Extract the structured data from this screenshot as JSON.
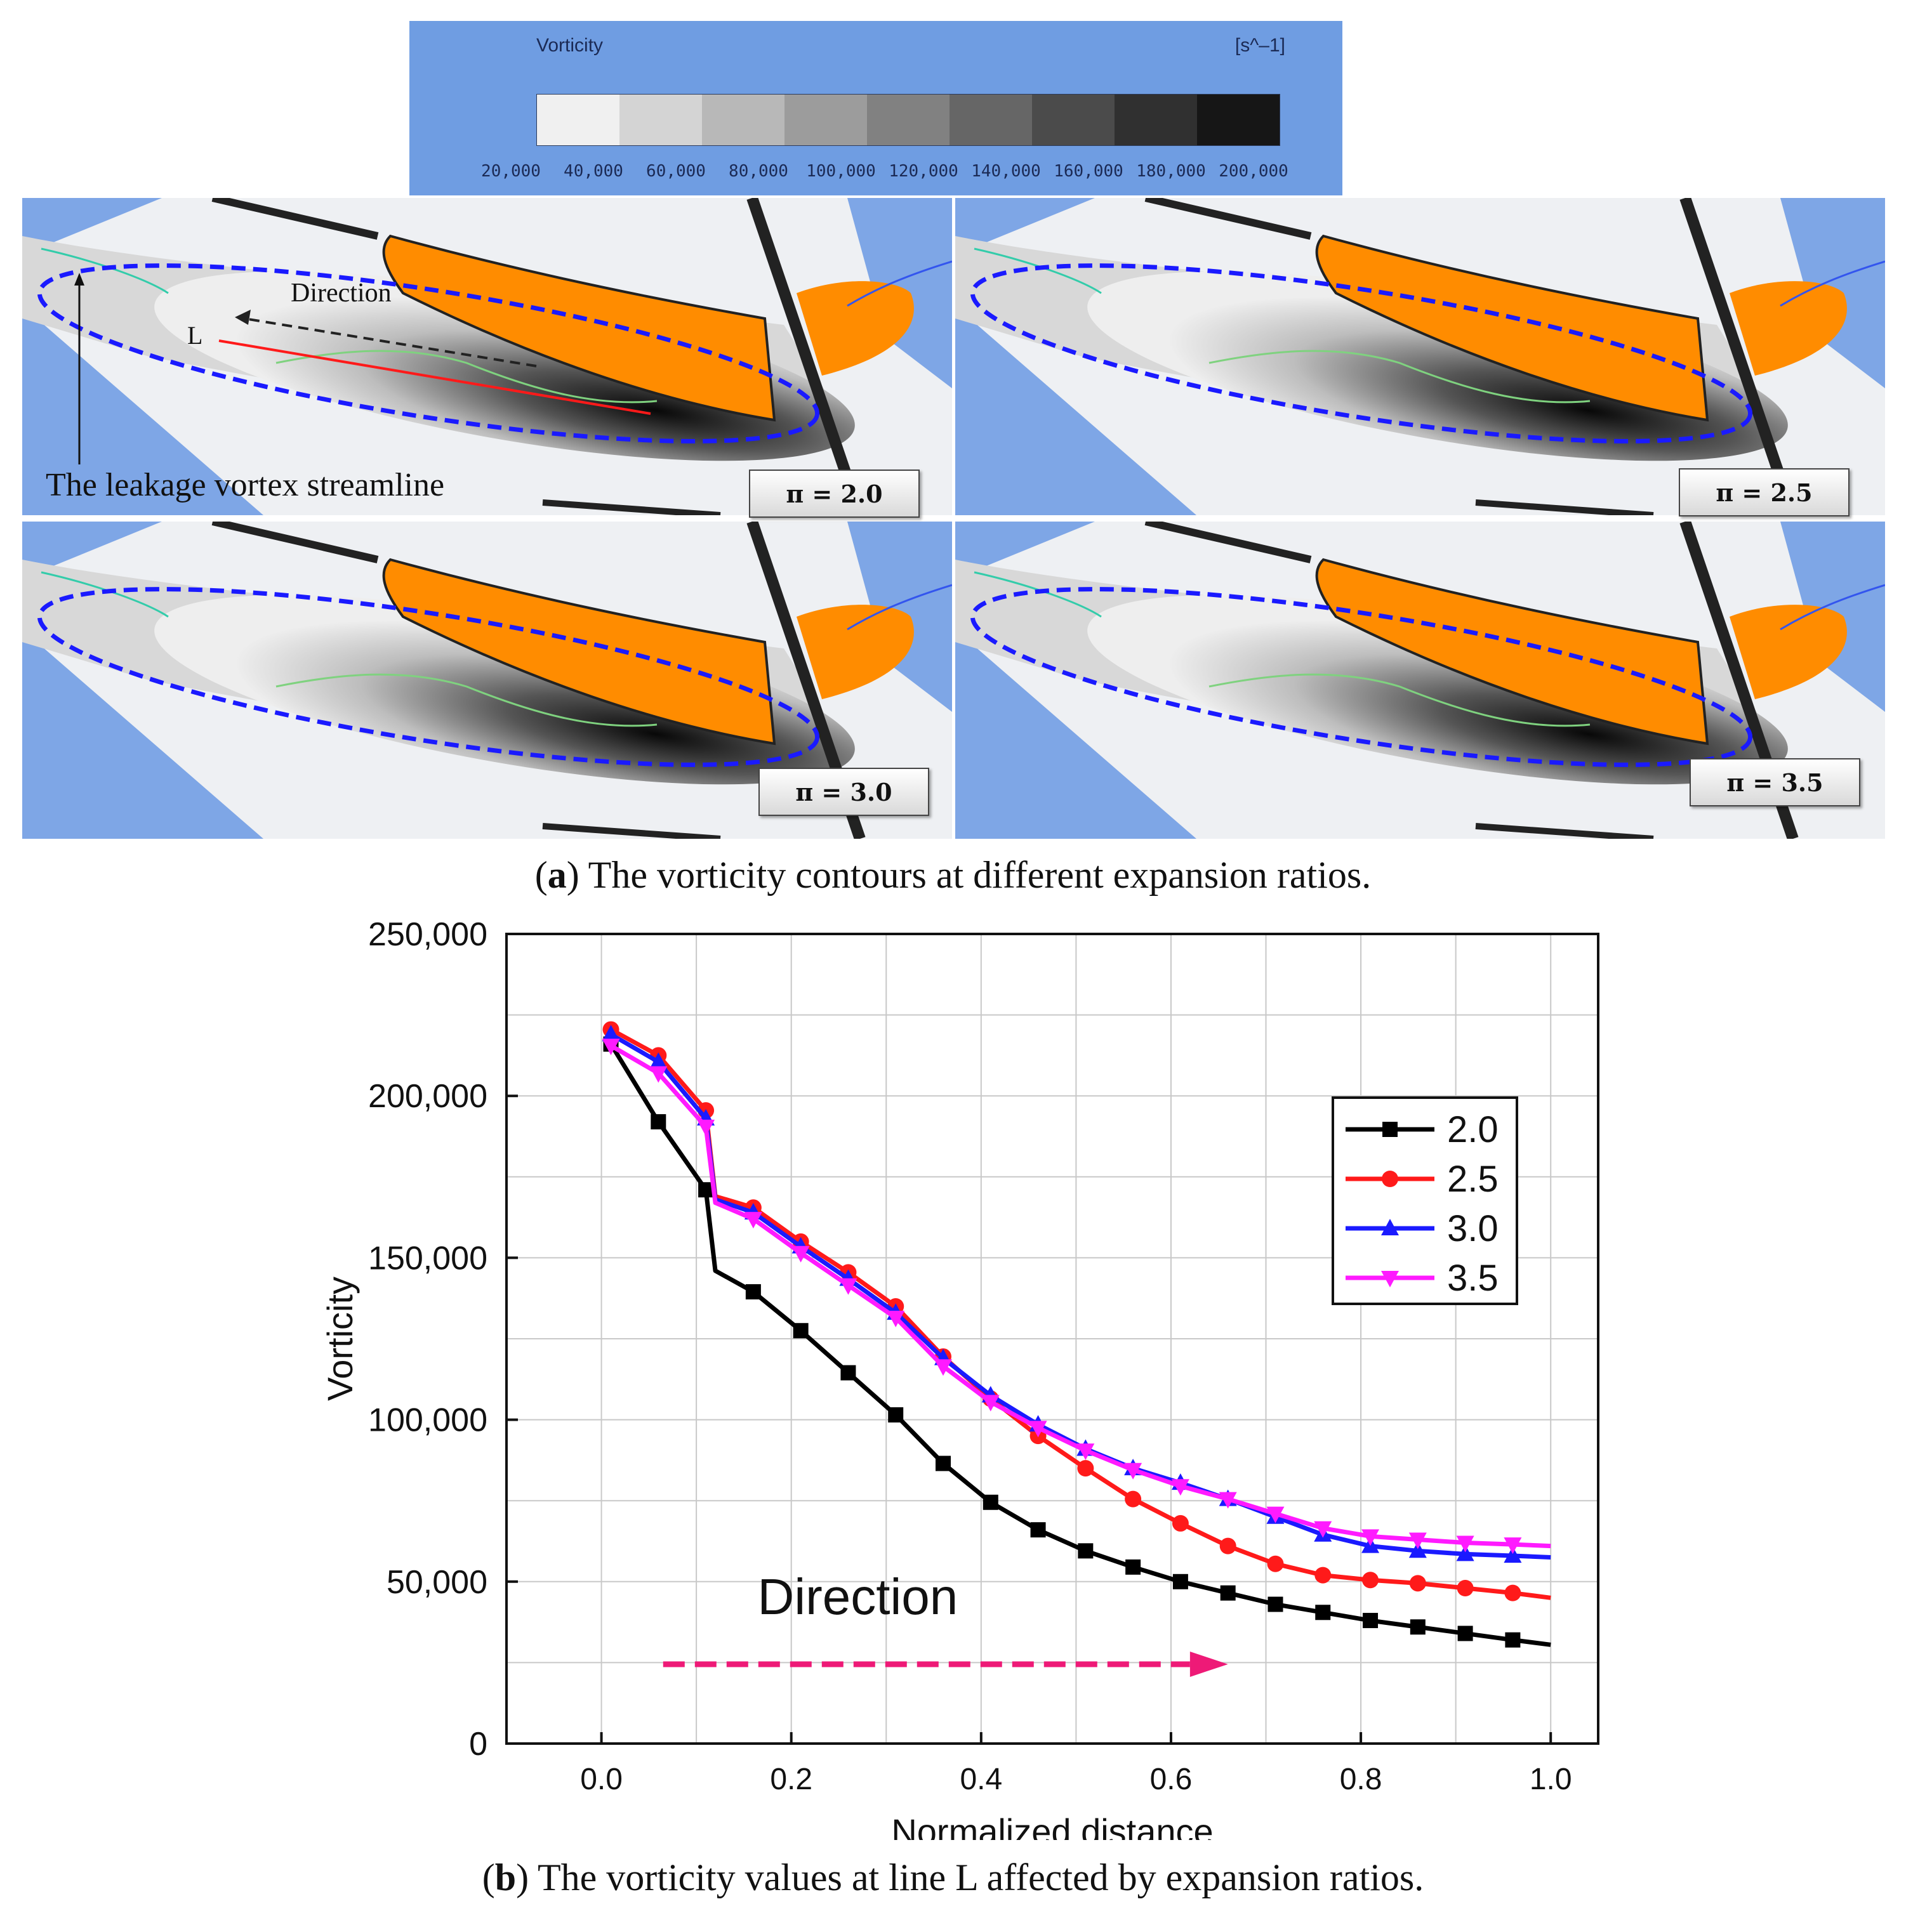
{
  "colorbar": {
    "title": "Vorticity",
    "unit": "[s^–1]",
    "ticks": [
      "20,000",
      "40,000",
      "60,000",
      "80,000",
      "100,000",
      "120,000",
      "140,000",
      "160,000",
      "180,000",
      "200,000"
    ],
    "shades": [
      "#f0f0f0",
      "#d4d4d4",
      "#b8b8b8",
      "#9c9c9c",
      "#818181",
      "#666666",
      "#4b4b4b",
      "#303030",
      "#161616"
    ],
    "background_color": "#6f9de2"
  },
  "panels": [
    {
      "label": "π = 2.0"
    },
    {
      "label": "π = 2.5"
    },
    {
      "label": "π = 3.0"
    },
    {
      "label": "π = 3.5"
    }
  ],
  "annotations": {
    "direction": "Direction",
    "line_label": "L",
    "streamline": "The leakage vortex streamline"
  },
  "caption_a": {
    "letter": "a",
    "text": ") The vorticity contours at different expansion ratios."
  },
  "caption_b": {
    "letter": "b",
    "text": ") The vorticity values at line L affected by expansion ratios."
  },
  "colors": {
    "blade": "#ff8c00",
    "ellipse": "#1a1aff",
    "direction_arrow": "#ee1a77",
    "line_L": "#ff1a1a"
  },
  "chart_data": {
    "type": "line",
    "xlabel": "Normalized distance",
    "ylabel": "Vorticity",
    "xlim": [
      -0.1,
      1.05
    ],
    "ylim": [
      0,
      250000
    ],
    "xticks": [
      0.0,
      0.2,
      0.4,
      0.6,
      0.8,
      1.0
    ],
    "xtick_labels": [
      "0.0",
      "0.2",
      "0.4",
      "0.6",
      "0.8",
      "1.0"
    ],
    "yticks": [
      0,
      50000,
      100000,
      150000,
      200000,
      250000
    ],
    "ytick_labels": [
      "0",
      "50,000",
      "100,000",
      "150,000",
      "200,000",
      "250,000"
    ],
    "grid": true,
    "legend_position": "top-right",
    "annotation": "Direction",
    "x": [
      0.01,
      0.06,
      0.11,
      0.16,
      0.21,
      0.26,
      0.31,
      0.36,
      0.41,
      0.46,
      0.51,
      0.56,
      0.61,
      0.66,
      0.71,
      0.76,
      0.81,
      0.86,
      0.91,
      0.96
    ],
    "series": [
      {
        "name": "2.0",
        "color": "#000000",
        "marker": "square",
        "values": [
          216000,
          192000,
          171000,
          139500,
          127500,
          114500,
          101500,
          86500,
          74500,
          66000,
          59500,
          54500,
          50000,
          46500,
          43000,
          40500,
          38000,
          36000,
          34000,
          32000
        ],
        "end": [
          1.0,
          30500
        ],
        "bump": [
          0.12,
          146000
        ]
      },
      {
        "name": "2.5",
        "color": "#ff1a1a",
        "marker": "circle",
        "values": [
          220500,
          212500,
          195500,
          165500,
          155000,
          145500,
          135000,
          119500,
          106500,
          95000,
          85000,
          75500,
          68000,
          61000,
          55500,
          52000,
          50500,
          49500,
          48000,
          46500
        ],
        "end": [
          1.0,
          45000
        ],
        "bump": [
          0.12,
          169000
        ]
      },
      {
        "name": "3.0",
        "color": "#1a1aff",
        "marker": "triangle-up",
        "values": [
          219000,
          210500,
          193000,
          164000,
          153500,
          143500,
          133000,
          119000,
          107500,
          98500,
          91000,
          85000,
          80500,
          75500,
          70000,
          64500,
          61000,
          59500,
          58500,
          58000
        ],
        "end": [
          1.0,
          57500
        ],
        "bump": [
          0.12,
          168000
        ]
      },
      {
        "name": "3.5",
        "color": "#ff1aff",
        "marker": "triangle-down",
        "values": [
          215500,
          207000,
          190500,
          162000,
          151500,
          141500,
          131500,
          116500,
          105500,
          97500,
          90500,
          84500,
          79500,
          75500,
          71000,
          66500,
          64000,
          63000,
          62000,
          61500
        ],
        "end": [
          1.0,
          61000
        ],
        "bump": [
          0.12,
          167000
        ]
      }
    ]
  }
}
